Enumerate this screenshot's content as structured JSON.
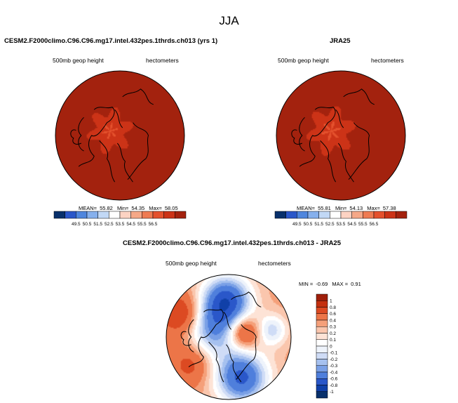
{
  "main_title": "JJA",
  "panels": [
    {
      "title": "CESM2.F2000climo.C96.C96.mg17.intel.432pes.1thrds.ch013 (yrs 1)",
      "variable": "500mb geop height",
      "units": "hectometers",
      "stats": {
        "mean_label": "MEAN=",
        "mean": "55.82",
        "min_label": "Min=",
        "min": "54.35",
        "max_label": "Max=",
        "max": "58.05"
      },
      "colorbar_labels": [
        "49.5",
        "50.5",
        "51.5",
        "52.5",
        "53.5",
        "54.5",
        "55.5",
        "56.5"
      ]
    },
    {
      "title": "JRA25",
      "variable": "500mb geop height",
      "units": "hectometers",
      "stats": {
        "mean_label": "MEAN=",
        "mean": "55.81",
        "min_label": "Min=",
        "min": "54.13",
        "max_label": "Max=",
        "max": "57.38"
      },
      "colorbar_labels": [
        "49.5",
        "50.5",
        "51.5",
        "52.5",
        "53.5",
        "54.5",
        "55.5",
        "56.5"
      ]
    },
    {
      "title": "CESM2.F2000climo.C96.C96.mg17.intel.432pes.1thrds.ch013 - JRA25",
      "variable": "500mb geop height",
      "units": "hectometers",
      "stats": {
        "min_label": "MIN =",
        "min": "-0.69",
        "max_label": "MAX =",
        "max": "0.91"
      },
      "colorbar_labels": [
        "1",
        "0.8",
        "0.6",
        "0.4",
        "0.3",
        "0.2",
        "0.1",
        "0",
        "-0.1",
        "-0.2",
        "-0.3",
        "-0.4",
        "-0.6",
        "-0.8",
        "-1"
      ]
    }
  ],
  "chart_data": [
    {
      "type": "heatmap",
      "projection": "polar stereographic",
      "title": "CESM2.F2000climo.C96.C96.mg17.intel.432pes.1thrds.ch013 (yrs 1)",
      "variable": "500mb geop height",
      "units": "hectometers",
      "mean": 55.82,
      "min": 54.35,
      "max": 58.05,
      "levels": [
        49.5,
        50.5,
        51.5,
        52.5,
        53.5,
        54.5,
        55.5,
        56.5
      ],
      "colors": [
        "#08306b",
        "#2a57c9",
        "#4f86dd",
        "#86b0ec",
        "#c2d8f5",
        "#ffffff",
        "#fcd3c3",
        "#f5a888",
        "#ee7b52",
        "#e4512d",
        "#cc3317",
        "#a3220e"
      ]
    },
    {
      "type": "heatmap",
      "projection": "polar stereographic",
      "title": "JRA25",
      "variable": "500mb geop height",
      "units": "hectometers",
      "mean": 55.81,
      "min": 54.13,
      "max": 57.38,
      "levels": [
        49.5,
        50.5,
        51.5,
        52.5,
        53.5,
        54.5,
        55.5,
        56.5
      ],
      "colors": [
        "#08306b",
        "#2a57c9",
        "#4f86dd",
        "#86b0ec",
        "#c2d8f5",
        "#ffffff",
        "#fcd3c3",
        "#f5a888",
        "#ee7b52",
        "#e4512d",
        "#cc3317",
        "#a3220e"
      ]
    },
    {
      "type": "heatmap",
      "projection": "polar stereographic",
      "title": "CESM2.F2000climo.C96.C96.mg17.intel.432pes.1thrds.ch013 - JRA25",
      "variable": "500mb geop height",
      "units": "hectometers",
      "min": -0.69,
      "max": 0.91,
      "levels": [
        -1,
        -0.8,
        -0.6,
        -0.4,
        -0.3,
        -0.2,
        -0.1,
        0,
        0.1,
        0.2,
        0.3,
        0.4,
        0.6,
        0.8,
        1
      ],
      "colors": [
        "#08306b",
        "#1040a8",
        "#2a57c9",
        "#4f7fdc",
        "#7aa0e6",
        "#a6c1ef",
        "#cfdcf6",
        "#eef3fb",
        "#ffffff",
        "#fde3d6",
        "#fac6ad",
        "#f5a07a",
        "#ec7548",
        "#dc4a22",
        "#c4300f",
        "#9f1f0a"
      ]
    }
  ]
}
